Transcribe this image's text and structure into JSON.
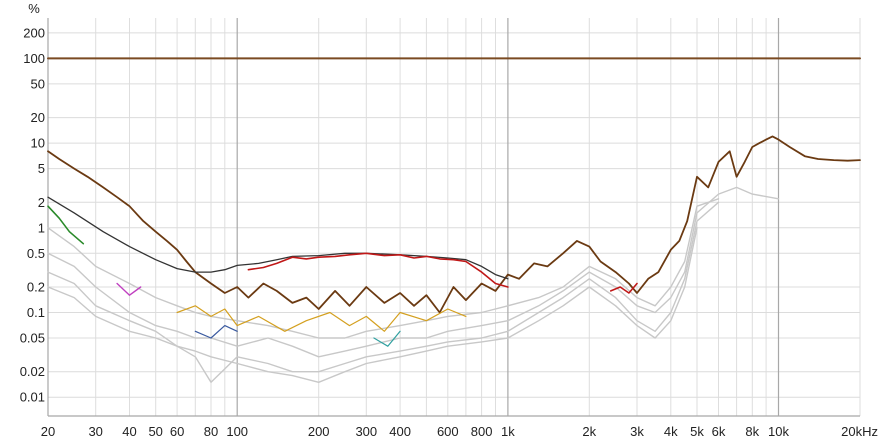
{
  "chart_data": {
    "type": "line",
    "title": "",
    "xlabel": "",
    "ylabel": "%",
    "x_scale": "log",
    "y_scale": "log",
    "xlim": [
      20,
      20000
    ],
    "ylim": [
      0.006,
      300
    ],
    "grid": true,
    "legend": "none",
    "x_ticks": [
      {
        "v": 20,
        "label": "20"
      },
      {
        "v": 30,
        "label": "30"
      },
      {
        "v": 40,
        "label": "40"
      },
      {
        "v": 50,
        "label": "50"
      },
      {
        "v": 60,
        "label": "60"
      },
      {
        "v": 80,
        "label": "80"
      },
      {
        "v": 100,
        "label": "100"
      },
      {
        "v": 200,
        "label": "200"
      },
      {
        "v": 300,
        "label": "300"
      },
      {
        "v": 400,
        "label": "400"
      },
      {
        "v": 600,
        "label": "600"
      },
      {
        "v": 800,
        "label": "800"
      },
      {
        "v": 1000,
        "label": "1k"
      },
      {
        "v": 2000,
        "label": "2k"
      },
      {
        "v": 3000,
        "label": "3k"
      },
      {
        "v": 4000,
        "label": "4k"
      },
      {
        "v": 5000,
        "label": "5k"
      },
      {
        "v": 6000,
        "label": "6k"
      },
      {
        "v": 8000,
        "label": "8k"
      },
      {
        "v": 10000,
        "label": "10k"
      },
      {
        "v": 20000,
        "label": "20kHz"
      }
    ],
    "y_ticks": [
      {
        "v": 200,
        "label": "200"
      },
      {
        "v": 100,
        "label": "100"
      },
      {
        "v": 50,
        "label": "50"
      },
      {
        "v": 20,
        "label": "20"
      },
      {
        "v": 10,
        "label": "10"
      },
      {
        "v": 5,
        "label": "5"
      },
      {
        "v": 2,
        "label": "2"
      },
      {
        "v": 1,
        "label": "1"
      },
      {
        "v": 0.5,
        "label": "0.5"
      },
      {
        "v": 0.2,
        "label": "0.2"
      },
      {
        "v": 0.1,
        "label": "0.1"
      },
      {
        "v": 0.05,
        "label": "0.05"
      },
      {
        "v": 0.02,
        "label": "0.02"
      },
      {
        "v": 0.01,
        "label": "0.01"
      }
    ],
    "series": [
      {
        "color": "#7a4a22",
        "width": 2,
        "x": [
          20,
          20000
        ],
        "y": [
          100,
          100
        ]
      },
      {
        "color": "#6b3a12",
        "width": 1.8,
        "x": [
          20,
          22,
          25,
          28,
          32,
          36,
          40,
          45,
          50,
          55,
          60,
          65,
          70,
          80,
          90,
          100,
          110,
          125,
          140,
          160,
          180,
          200,
          230,
          260,
          300,
          350,
          400,
          450,
          500,
          560,
          630,
          700,
          800,
          900,
          1000,
          1100,
          1250,
          1400,
          1600,
          1800,
          2000,
          2200,
          2500,
          2800,
          3000,
          3300,
          3600,
          4000,
          4300,
          4600,
          5000,
          5500,
          6000,
          6600,
          7000,
          7500,
          8000,
          8500,
          9000,
          9500,
          10000,
          11000,
          12500,
          14000,
          16000,
          18000,
          20000
        ],
        "y": [
          8,
          6.5,
          5,
          4,
          3,
          2.3,
          1.8,
          1.2,
          0.9,
          0.7,
          0.55,
          0.4,
          0.3,
          0.22,
          0.17,
          0.2,
          0.15,
          0.22,
          0.18,
          0.13,
          0.15,
          0.11,
          0.18,
          0.12,
          0.2,
          0.13,
          0.17,
          0.12,
          0.16,
          0.1,
          0.2,
          0.14,
          0.22,
          0.18,
          0.28,
          0.25,
          0.38,
          0.35,
          0.5,
          0.7,
          0.6,
          0.4,
          0.3,
          0.22,
          0.17,
          0.25,
          0.3,
          0.55,
          0.7,
          1.2,
          4,
          3,
          6,
          8,
          4,
          6,
          9,
          10,
          11,
          12,
          11,
          9,
          7,
          6.5,
          6.3,
          6.2,
          6.3
        ]
      },
      {
        "color": "#333333",
        "width": 1.3,
        "x": [
          20,
          25,
          32,
          40,
          50,
          60,
          70,
          80,
          90,
          100,
          120,
          140,
          160,
          200,
          250,
          300,
          400,
          500,
          600,
          700,
          800,
          900,
          1000
        ],
        "y": [
          2.3,
          1.5,
          0.9,
          0.6,
          0.42,
          0.33,
          0.3,
          0.3,
          0.32,
          0.36,
          0.38,
          0.42,
          0.46,
          0.47,
          0.5,
          0.5,
          0.48,
          0.46,
          0.44,
          0.42,
          0.35,
          0.28,
          0.25
        ]
      },
      {
        "color": "#c01818",
        "width": 1.6,
        "x": [
          110,
          125,
          140,
          160,
          180,
          200,
          230,
          260,
          300,
          350,
          400,
          450,
          500,
          560,
          630,
          700,
          800,
          900,
          1000
        ],
        "y": [
          0.32,
          0.34,
          0.38,
          0.45,
          0.43,
          0.45,
          0.46,
          0.48,
          0.5,
          0.47,
          0.48,
          0.44,
          0.46,
          0.43,
          0.42,
          0.4,
          0.3,
          0.22,
          0.2
        ]
      },
      {
        "color": "#c01818",
        "width": 1.6,
        "x": [
          2400,
          2600,
          2800,
          3000
        ],
        "y": [
          0.18,
          0.2,
          0.17,
          0.22
        ]
      },
      {
        "color": "#2a8a2a",
        "width": 1.6,
        "x": [
          20,
          22,
          24,
          27
        ],
        "y": [
          1.8,
          1.3,
          0.9,
          0.65
        ]
      },
      {
        "color": "#d4a020",
        "width": 1.2,
        "x": [
          60,
          70,
          80,
          90,
          100,
          120,
          150,
          180,
          220,
          260,
          300,
          350,
          400,
          500,
          600,
          700
        ],
        "y": [
          0.1,
          0.12,
          0.09,
          0.11,
          0.07,
          0.09,
          0.06,
          0.08,
          0.1,
          0.07,
          0.09,
          0.06,
          0.1,
          0.08,
          0.11,
          0.09
        ]
      },
      {
        "color": "#c040c0",
        "width": 1.4,
        "x": [
          36,
          40,
          44
        ],
        "y": [
          0.22,
          0.16,
          0.2
        ]
      },
      {
        "color": "#3a5aa0",
        "width": 1.2,
        "x": [
          70,
          80,
          90,
          100
        ],
        "y": [
          0.06,
          0.05,
          0.07,
          0.06
        ]
      },
      {
        "color": "#30a0a0",
        "width": 1.2,
        "x": [
          320,
          360,
          400
        ],
        "y": [
          0.05,
          0.04,
          0.06
        ]
      },
      {
        "color": "#c8c8c8",
        "width": 1.4,
        "x": [
          20,
          25,
          30,
          40,
          50,
          60,
          70,
          80,
          100,
          130,
          160,
          200,
          250,
          300,
          400,
          500,
          600,
          800,
          1000,
          1300,
          1600,
          2000,
          2500,
          3000,
          3500,
          4000,
          4500,
          5000,
          6000,
          7000,
          8000,
          10000
        ],
        "y": [
          0.5,
          0.35,
          0.2,
          0.1,
          0.07,
          0.06,
          0.05,
          0.05,
          0.04,
          0.05,
          0.04,
          0.03,
          0.035,
          0.04,
          0.05,
          0.05,
          0.06,
          0.07,
          0.08,
          0.12,
          0.18,
          0.3,
          0.2,
          0.12,
          0.1,
          0.15,
          0.3,
          1.5,
          2.5,
          3,
          2.5,
          2.2
        ]
      },
      {
        "color": "#c8c8c8",
        "width": 1.4,
        "x": [
          20,
          25,
          30,
          40,
          50,
          60,
          70,
          80,
          100,
          130,
          160,
          200,
          250,
          300,
          400,
          500,
          600,
          800,
          1000,
          1300,
          1600,
          2000,
          2500,
          3000,
          3500,
          4000,
          4500,
          5000,
          6000
        ],
        "y": [
          0.3,
          0.22,
          0.12,
          0.08,
          0.06,
          0.04,
          0.03,
          0.015,
          0.03,
          0.025,
          0.02,
          0.02,
          0.025,
          0.03,
          0.035,
          0.04,
          0.045,
          0.05,
          0.06,
          0.1,
          0.15,
          0.25,
          0.15,
          0.08,
          0.06,
          0.1,
          0.25,
          1.2,
          2
        ]
      },
      {
        "color": "#c8c8c8",
        "width": 1.4,
        "x": [
          20,
          25,
          30,
          40,
          50,
          60,
          70,
          80,
          100,
          130,
          160,
          200,
          250,
          300,
          400,
          500,
          600,
          800,
          1000,
          1300,
          1600,
          2000,
          2500,
          3000,
          3500,
          4000,
          4500,
          5000,
          6000
        ],
        "y": [
          1,
          0.6,
          0.35,
          0.22,
          0.15,
          0.12,
          0.1,
          0.09,
          0.08,
          0.07,
          0.06,
          0.05,
          0.05,
          0.06,
          0.07,
          0.08,
          0.09,
          0.1,
          0.12,
          0.15,
          0.2,
          0.35,
          0.25,
          0.15,
          0.12,
          0.2,
          0.4,
          1.8,
          2.2
        ]
      },
      {
        "color": "#c8c8c8",
        "width": 1.4,
        "x": [
          20,
          25,
          30,
          40,
          50,
          60,
          70,
          80,
          100,
          130,
          160,
          200,
          250,
          300,
          400,
          500,
          600,
          800,
          1000,
          1300,
          1600,
          2000,
          2500,
          3000,
          3500,
          4000,
          4500,
          5000
        ],
        "y": [
          0.2,
          0.15,
          0.09,
          0.06,
          0.05,
          0.04,
          0.035,
          0.03,
          0.025,
          0.02,
          0.018,
          0.015,
          0.02,
          0.025,
          0.03,
          0.035,
          0.04,
          0.045,
          0.05,
          0.08,
          0.12,
          0.2,
          0.12,
          0.07,
          0.05,
          0.08,
          0.2,
          1
        ]
      }
    ]
  }
}
